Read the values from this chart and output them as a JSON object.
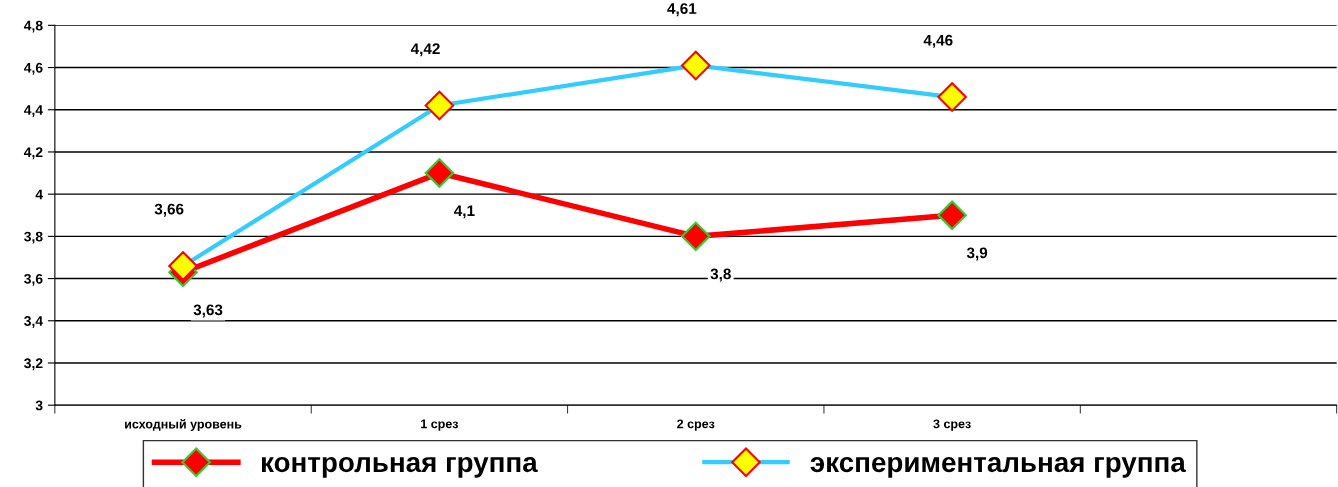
{
  "chart_data": {
    "type": "line",
    "categories": [
      "исходный уровень",
      "1 срез",
      "2 срез",
      "3 срез",
      null
    ],
    "series": [
      {
        "name": "контрольная группа",
        "color": "#ff0000",
        "values": [
          3.63,
          4.1,
          3.8,
          3.9,
          null
        ],
        "value_labels": [
          "3,63",
          "4,1",
          "3,8",
          "3,9",
          null
        ]
      },
      {
        "name": "экспериментальная группа",
        "color": "#33ccff",
        "values": [
          3.66,
          4.42,
          4.61,
          4.46,
          null
        ],
        "value_labels": [
          "3,66",
          "4,42",
          "4,61",
          "4,46",
          null
        ]
      }
    ],
    "ylim": [
      3,
      4.8
    ],
    "yticks": [
      3,
      {
        "value": 3.2,
        "label": "3,2"
      },
      {
        "value": 3.4,
        "label": "3,4"
      },
      {
        "value": 3.6,
        "label": "3,6"
      },
      {
        "value": 3.8,
        "label": "3,8"
      },
      4,
      {
        "value": 4.2,
        "label": "4,2"
      },
      {
        "value": 4.4,
        "label": "4,4"
      },
      {
        "value": 4.6,
        "label": "4,6"
      },
      {
        "value": 4.8,
        "label": "4,8"
      }
    ],
    "grid": "y",
    "legend": "bottom",
    "marker": "diamond"
  }
}
